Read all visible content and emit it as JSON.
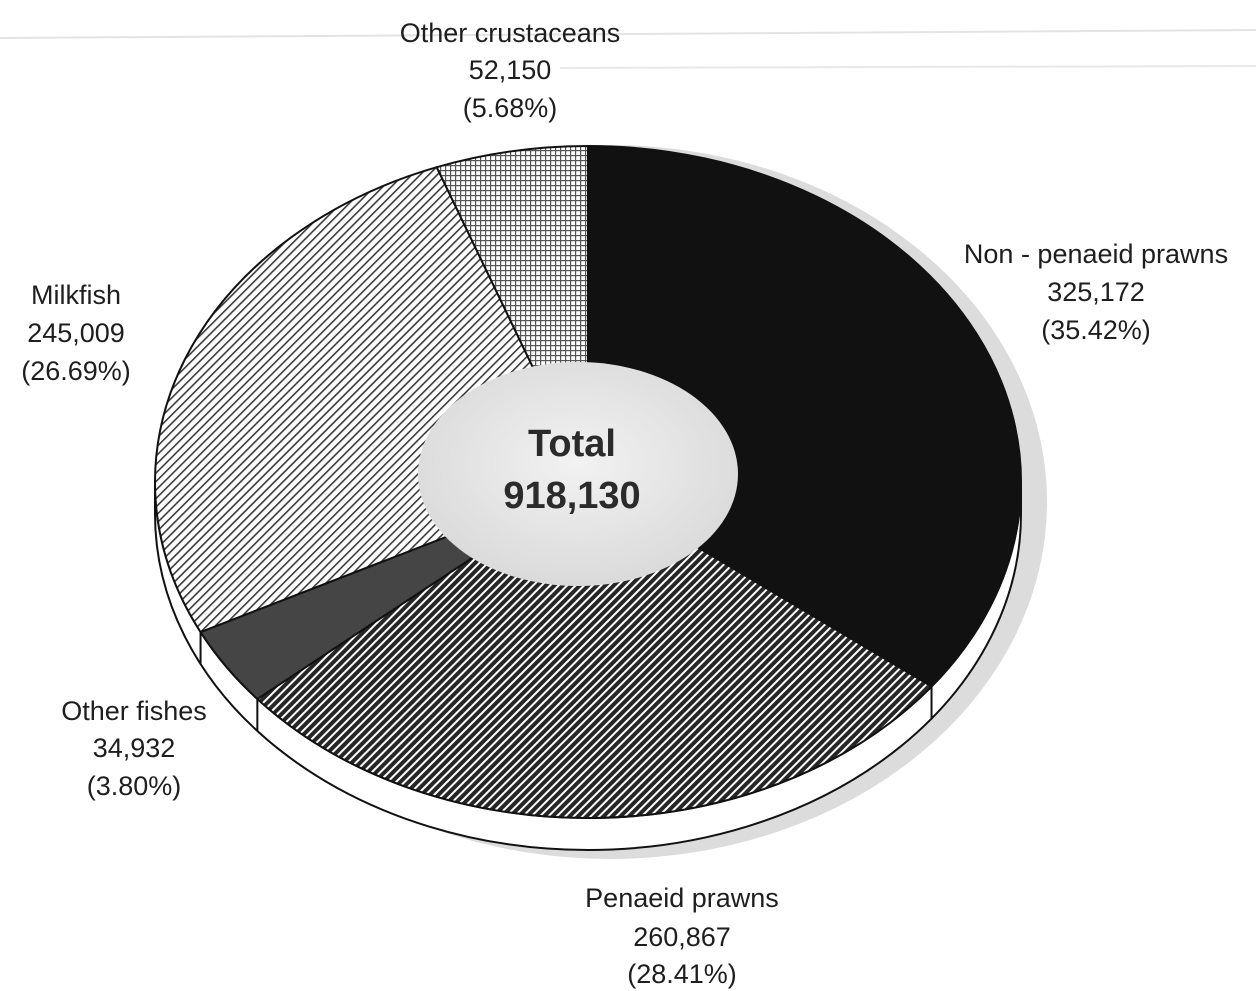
{
  "chart_data": {
    "type": "pie",
    "style": "3d-donut",
    "start_angle_deg": 0,
    "direction": "clockwise",
    "slices": [
      {
        "name": "Non - penaeid prawns",
        "value": 325172,
        "value_label": "325,172",
        "percent_label": "(35.42%)",
        "fill": "#111111",
        "pattern": "solid"
      },
      {
        "name": "Penaeid prawns",
        "value": 260867,
        "value_label": "260,867",
        "percent_label": "(28.41%)",
        "fill": "#2a2a2a",
        "pattern": "dense-diagonal-hatch"
      },
      {
        "name": "Other fishes",
        "value": 34932,
        "value_label": "34,932",
        "percent_label": "(3.80%)",
        "fill": "#454545",
        "pattern": "solid"
      },
      {
        "name": "Milkfish",
        "value": 245009,
        "value_label": "245,009",
        "percent_label": "(26.69%)",
        "fill": "#ffffff",
        "pattern": "light-diagonal-hatch"
      },
      {
        "name": "Other crustaceans",
        "value": 52150,
        "value_label": "52,150",
        "percent_label": "(5.68%)",
        "fill": "#ffffff",
        "pattern": "crosshatch"
      }
    ],
    "center_label": {
      "title": "Total",
      "value": "918,130"
    }
  },
  "colors": {
    "text": "#1e1e1e",
    "rim": "#ffffff",
    "shadow": "#d4d4d4",
    "hole": "#e6e6e6"
  }
}
